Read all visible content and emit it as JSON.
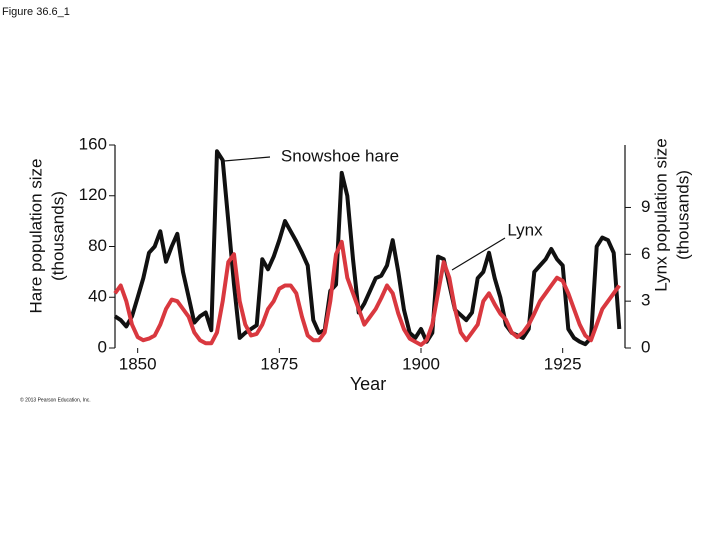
{
  "figure_label": "Figure 36.6_1",
  "copyright": "© 2013 Pearson Education, Inc.",
  "chart_data": {
    "type": "line",
    "xlabel": "Year",
    "ylabel": [
      "Hare population size",
      "(thousands)"
    ],
    "y2label": [
      "Lynx population size",
      "(thousands)"
    ],
    "annotations": [
      "Snowshoe hare",
      "Lynx"
    ],
    "xlim": [
      1846,
      1936
    ],
    "xticks": [
      1850,
      1875,
      1900,
      1925
    ],
    "ylim": [
      0,
      160
    ],
    "yticks": [
      0,
      40,
      80,
      120,
      160
    ],
    "y2lim": [
      0,
      13
    ],
    "y2ticks": [
      0,
      3,
      6,
      9
    ],
    "x": [
      1846,
      1847,
      1848,
      1849,
      1850,
      1851,
      1852,
      1853,
      1854,
      1855,
      1856,
      1857,
      1858,
      1859,
      1860,
      1861,
      1862,
      1863,
      1864,
      1865,
      1866,
      1867,
      1868,
      1869,
      1870,
      1871,
      1872,
      1873,
      1874,
      1875,
      1876,
      1877,
      1878,
      1879,
      1880,
      1881,
      1882,
      1883,
      1884,
      1885,
      1886,
      1887,
      1888,
      1889,
      1890,
      1891,
      1892,
      1893,
      1894,
      1895,
      1896,
      1897,
      1898,
      1899,
      1900,
      1901,
      1902,
      1903,
      1904,
      1905,
      1906,
      1907,
      1908,
      1909,
      1910,
      1911,
      1912,
      1913,
      1914,
      1915,
      1916,
      1917,
      1918,
      1919,
      1920,
      1921,
      1922,
      1923,
      1924,
      1925,
      1926,
      1927,
      1928,
      1929,
      1930,
      1931,
      1932,
      1933,
      1934,
      1935
    ],
    "series": [
      {
        "name": "Snowshoe hare",
        "color": "#111111",
        "axis": "y",
        "values": [
          25,
          22,
          17,
          25,
          40,
          55,
          75,
          80,
          92,
          68,
          80,
          90,
          60,
          40,
          20,
          25,
          28,
          14,
          155,
          148,
          100,
          50,
          8,
          12,
          15,
          18,
          70,
          62,
          72,
          85,
          100,
          92,
          84,
          75,
          65,
          22,
          12,
          14,
          45,
          50,
          138,
          120,
          70,
          28,
          35,
          45,
          55,
          57,
          65,
          85,
          60,
          30,
          12,
          8,
          15,
          5,
          12,
          72,
          70,
          50,
          30,
          26,
          22,
          28,
          55,
          60,
          75,
          55,
          40,
          18,
          12,
          10,
          8,
          15,
          60,
          65,
          70,
          78,
          70,
          65,
          15,
          8,
          5,
          3,
          8,
          80,
          87,
          85,
          75,
          15
        ]
      },
      {
        "name": "Lynx",
        "color": "#d9383f",
        "axis": "y2",
        "values": [
          3.5,
          4,
          3,
          1.5,
          0.7,
          0.5,
          0.6,
          0.8,
          1.5,
          2.5,
          3.1,
          3,
          2.5,
          2,
          1,
          0.5,
          0.3,
          0.3,
          1,
          3,
          5.5,
          6,
          3,
          1.5,
          0.8,
          0.9,
          1.5,
          2.5,
          3,
          3.8,
          4,
          4,
          3.5,
          2,
          0.8,
          0.5,
          0.5,
          1,
          3,
          6,
          6.8,
          4.5,
          3.5,
          2.5,
          1.5,
          2,
          2.5,
          3.2,
          4,
          3.5,
          2.2,
          1.2,
          0.6,
          0.4,
          0.2,
          0.5,
          1.5,
          3.5,
          5.5,
          4.5,
          2.5,
          1,
          0.5,
          1,
          1.5,
          3,
          3.5,
          2.8,
          2.2,
          1.8,
          1,
          0.7,
          1,
          1.5,
          2.2,
          3,
          3.5,
          4,
          4.5,
          4.3,
          3.5,
          2.5,
          1.5,
          0.8,
          0.5,
          1.5,
          2.5,
          3,
          3.5,
          4
        ]
      }
    ]
  }
}
